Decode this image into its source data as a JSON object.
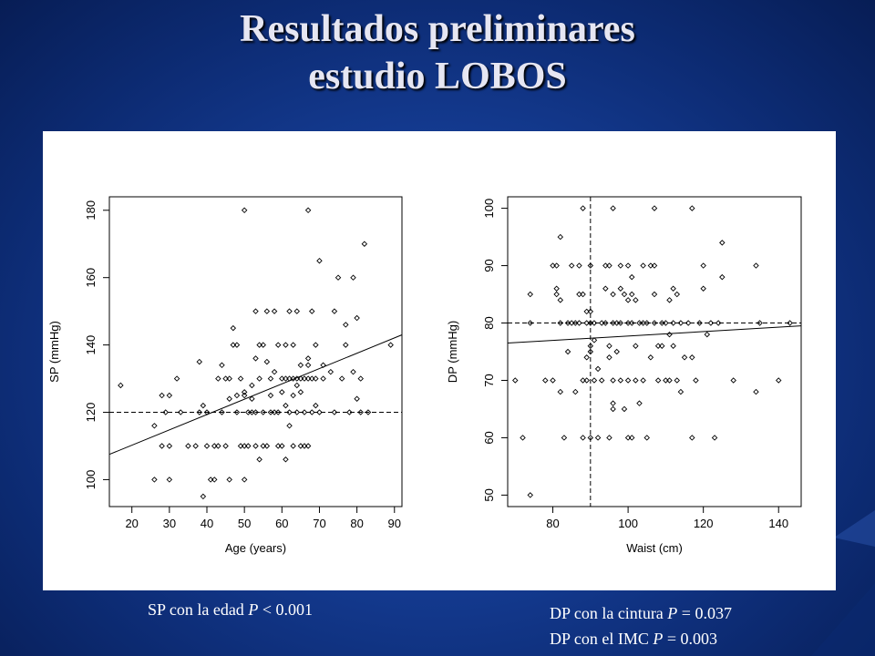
{
  "slide": {
    "title_line1": "Resultados preliminares",
    "title_line2": "estudio LOBOS"
  },
  "captions": {
    "left": {
      "prefix": "SP con la edad ",
      "p": "P",
      "suffix": " < 0.001"
    },
    "right1": {
      "prefix": "DP con la cintura ",
      "p": "P",
      "suffix": " = 0.037"
    },
    "right2": {
      "prefix": "DP con el IMC ",
      "p": "P",
      "suffix": " = 0.003"
    }
  },
  "chart_data": [
    {
      "type": "scatter",
      "xlabel": "Age (years)",
      "ylabel": "SP (mmHg)",
      "xlim": [
        14,
        92
      ],
      "ylim": [
        92,
        184
      ],
      "xticks": [
        20,
        30,
        40,
        50,
        60,
        70,
        80,
        90
      ],
      "yticks": [
        100,
        120,
        140,
        160,
        180
      ],
      "grid": false,
      "reference_lines": [
        {
          "axis": "y",
          "value": 120,
          "style": "dashed"
        }
      ],
      "regression_line": {
        "from": [
          14,
          107.5
        ],
        "to": [
          92,
          143
        ],
        "style": "solid"
      },
      "points": [
        [
          17,
          128
        ],
        [
          26,
          116
        ],
        [
          26,
          100
        ],
        [
          28,
          125
        ],
        [
          28,
          110
        ],
        [
          29,
          120
        ],
        [
          30,
          125
        ],
        [
          30,
          110
        ],
        [
          30,
          100
        ],
        [
          32,
          130
        ],
        [
          33,
          120
        ],
        [
          35,
          110
        ],
        [
          37,
          110
        ],
        [
          38,
          135
        ],
        [
          38,
          120
        ],
        [
          39,
          95
        ],
        [
          39,
          122
        ],
        [
          40,
          120
        ],
        [
          40,
          110
        ],
        [
          41,
          100
        ],
        [
          42,
          110
        ],
        [
          42,
          100
        ],
        [
          43,
          130
        ],
        [
          43,
          110
        ],
        [
          44,
          134
        ],
        [
          44,
          120
        ],
        [
          45,
          130
        ],
        [
          45,
          110
        ],
        [
          46,
          130
        ],
        [
          46,
          124
        ],
        [
          46,
          100
        ],
        [
          47,
          140
        ],
        [
          47,
          145
        ],
        [
          48,
          120
        ],
        [
          48,
          125
        ],
        [
          48,
          140
        ],
        [
          49,
          110
        ],
        [
          49,
          130
        ],
        [
          50,
          126
        ],
        [
          50,
          110
        ],
        [
          50,
          125
        ],
        [
          50,
          100
        ],
        [
          50,
          180
        ],
        [
          51,
          120
        ],
        [
          51,
          110
        ],
        [
          52,
          124
        ],
        [
          52,
          120
        ],
        [
          52,
          128
        ],
        [
          53,
          150
        ],
        [
          53,
          136
        ],
        [
          53,
          120
        ],
        [
          53,
          110
        ],
        [
          54,
          106
        ],
        [
          54,
          140
        ],
        [
          54,
          130
        ],
        [
          55,
          140
        ],
        [
          55,
          120
        ],
        [
          55,
          110
        ],
        [
          56,
          150
        ],
        [
          56,
          135
        ],
        [
          56,
          110
        ],
        [
          57,
          130
        ],
        [
          57,
          125
        ],
        [
          57,
          120
        ],
        [
          58,
          120
        ],
        [
          58,
          132
        ],
        [
          58,
          150
        ],
        [
          59,
          140
        ],
        [
          59,
          110
        ],
        [
          59,
          120
        ],
        [
          60,
          110
        ],
        [
          60,
          126
        ],
        [
          60,
          130
        ],
        [
          61,
          122
        ],
        [
          61,
          130
        ],
        [
          61,
          140
        ],
        [
          61,
          106
        ],
        [
          62,
          116
        ],
        [
          62,
          130
        ],
        [
          62,
          150
        ],
        [
          62,
          120
        ],
        [
          63,
          125
        ],
        [
          63,
          130
        ],
        [
          63,
          140
        ],
        [
          63,
          110
        ],
        [
          64,
          130
        ],
        [
          64,
          120
        ],
        [
          64,
          150
        ],
        [
          64,
          128
        ],
        [
          65,
          134
        ],
        [
          65,
          130
        ],
        [
          65,
          126
        ],
        [
          65,
          110
        ],
        [
          66,
          120
        ],
        [
          66,
          130
        ],
        [
          66,
          110
        ],
        [
          67,
          136
        ],
        [
          67,
          130
        ],
        [
          67,
          180
        ],
        [
          67,
          134
        ],
        [
          67,
          110
        ],
        [
          68,
          120
        ],
        [
          68,
          130
        ],
        [
          68,
          150
        ],
        [
          69,
          122
        ],
        [
          69,
          130
        ],
        [
          69,
          140
        ],
        [
          70,
          165
        ],
        [
          70,
          120
        ],
        [
          71,
          130
        ],
        [
          71,
          134
        ],
        [
          73,
          132
        ],
        [
          74,
          150
        ],
        [
          74,
          120
        ],
        [
          75,
          160
        ],
        [
          76,
          130
        ],
        [
          77,
          146
        ],
        [
          77,
          140
        ],
        [
          78,
          120
        ],
        [
          79,
          132
        ],
        [
          79,
          160
        ],
        [
          80,
          148
        ],
        [
          80,
          124
        ],
        [
          81,
          130
        ],
        [
          81,
          120
        ],
        [
          82,
          170
        ],
        [
          83,
          120
        ],
        [
          89,
          140
        ]
      ]
    },
    {
      "type": "scatter",
      "xlabel": "Waist (cm)",
      "ylabel": "DP (mmHg)",
      "xlim": [
        68,
        146
      ],
      "ylim": [
        48,
        102
      ],
      "xticks": [
        80,
        100,
        120,
        140
      ],
      "yticks": [
        50,
        60,
        70,
        80,
        90,
        100
      ],
      "grid": false,
      "reference_lines": [
        {
          "axis": "y",
          "value": 80,
          "style": "dashed"
        },
        {
          "axis": "x",
          "value": 90,
          "style": "dashed"
        }
      ],
      "regression_line": {
        "from": [
          68,
          76.5
        ],
        "to": [
          146,
          79.5
        ],
        "style": "solid"
      },
      "points": [
        [
          70,
          70
        ],
        [
          72,
          60
        ],
        [
          74,
          85
        ],
        [
          74,
          80
        ],
        [
          74,
          50
        ],
        [
          78,
          70
        ],
        [
          80,
          70
        ],
        [
          80,
          90
        ],
        [
          81,
          86
        ],
        [
          81,
          90
        ],
        [
          81,
          85
        ],
        [
          82,
          95
        ],
        [
          82,
          84
        ],
        [
          82,
          80
        ],
        [
          82,
          68
        ],
        [
          83,
          60
        ],
        [
          84,
          80
        ],
        [
          84,
          75
        ],
        [
          85,
          90
        ],
        [
          85,
          80
        ],
        [
          86,
          80
        ],
        [
          86,
          68
        ],
        [
          87,
          90
        ],
        [
          87,
          85
        ],
        [
          87,
          80
        ],
        [
          88,
          100
        ],
        [
          88,
          60
        ],
        [
          88,
          70
        ],
        [
          88,
          85
        ],
        [
          89,
          80
        ],
        [
          89,
          82
        ],
        [
          89,
          74
        ],
        [
          89,
          70
        ],
        [
          90,
          90
        ],
        [
          90,
          80
        ],
        [
          90,
          82
        ],
        [
          90,
          75
        ],
        [
          90,
          76
        ],
        [
          90,
          60
        ],
        [
          91,
          70
        ],
        [
          91,
          80
        ],
        [
          91,
          77
        ],
        [
          92,
          60
        ],
        [
          92,
          72
        ],
        [
          93,
          80
        ],
        [
          93,
          70
        ],
        [
          94,
          90
        ],
        [
          94,
          86
        ],
        [
          94,
          80
        ],
        [
          95,
          90
        ],
        [
          95,
          76
        ],
        [
          95,
          74
        ],
        [
          95,
          60
        ],
        [
          96,
          100
        ],
        [
          96,
          85
        ],
        [
          96,
          80
        ],
        [
          96,
          70
        ],
        [
          96,
          66
        ],
        [
          96,
          65
        ],
        [
          97,
          80
        ],
        [
          97,
          75
        ],
        [
          98,
          90
        ],
        [
          98,
          86
        ],
        [
          98,
          80
        ],
        [
          98,
          70
        ],
        [
          99,
          85
        ],
        [
          99,
          65
        ],
        [
          100,
          90
        ],
        [
          100,
          84
        ],
        [
          100,
          80
        ],
        [
          100,
          70
        ],
        [
          100,
          60
        ],
        [
          101,
          88
        ],
        [
          101,
          80
        ],
        [
          101,
          85
        ],
        [
          101,
          60
        ],
        [
          102,
          84
        ],
        [
          102,
          76
        ],
        [
          102,
          70
        ],
        [
          103,
          80
        ],
        [
          103,
          66
        ],
        [
          104,
          90
        ],
        [
          104,
          80
        ],
        [
          104,
          70
        ],
        [
          105,
          80
        ],
        [
          105,
          60
        ],
        [
          106,
          90
        ],
        [
          106,
          74
        ],
        [
          107,
          100
        ],
        [
          107,
          90
        ],
        [
          107,
          85
        ],
        [
          107,
          80
        ],
        [
          108,
          76
        ],
        [
          108,
          70
        ],
        [
          109,
          80
        ],
        [
          109,
          76
        ],
        [
          110,
          80
        ],
        [
          110,
          70
        ],
        [
          111,
          84
        ],
        [
          111,
          78
        ],
        [
          111,
          70
        ],
        [
          112,
          86
        ],
        [
          112,
          76
        ],
        [
          112,
          80
        ],
        [
          113,
          85
        ],
        [
          113,
          70
        ],
        [
          114,
          80
        ],
        [
          114,
          68
        ],
        [
          115,
          74
        ],
        [
          116,
          80
        ],
        [
          117,
          100
        ],
        [
          117,
          74
        ],
        [
          117,
          60
        ],
        [
          118,
          70
        ],
        [
          119,
          80
        ],
        [
          120,
          90
        ],
        [
          120,
          86
        ],
        [
          121,
          78
        ],
        [
          122,
          80
        ],
        [
          123,
          60
        ],
        [
          124,
          80
        ],
        [
          125,
          94
        ],
        [
          125,
          88
        ],
        [
          128,
          70
        ],
        [
          134,
          90
        ],
        [
          134,
          68
        ],
        [
          135,
          80
        ],
        [
          140,
          70
        ],
        [
          143,
          80
        ]
      ]
    }
  ]
}
